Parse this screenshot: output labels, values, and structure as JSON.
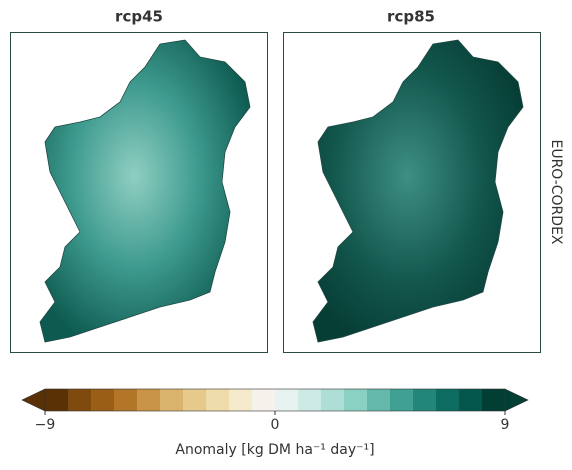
{
  "panels": [
    {
      "title": "rcp45"
    },
    {
      "title": "rcp85"
    }
  ],
  "row_label": "EURO-CORDEX",
  "colorbar": {
    "label": "Anomaly [kg DM ha⁻¹ day⁻¹]",
    "vmin": -9,
    "vmax": 9,
    "ticks": [
      {
        "value": -9,
        "label": "−9"
      },
      0,
      9
    ],
    "colors": [
      "#5a3005",
      "#7f4a0e",
      "#9b5e16",
      "#b37628",
      "#c99448",
      "#dab36c",
      "#e6c98b",
      "#efdcab",
      "#f5ebcc",
      "#f4f2ea",
      "#e8f2f0",
      "#cdeae5",
      "#aedfd6",
      "#8ad0c3",
      "#65b9ab",
      "#40a094",
      "#22867a",
      "#0e6d62",
      "#04574c",
      "#013f35"
    ]
  }
}
